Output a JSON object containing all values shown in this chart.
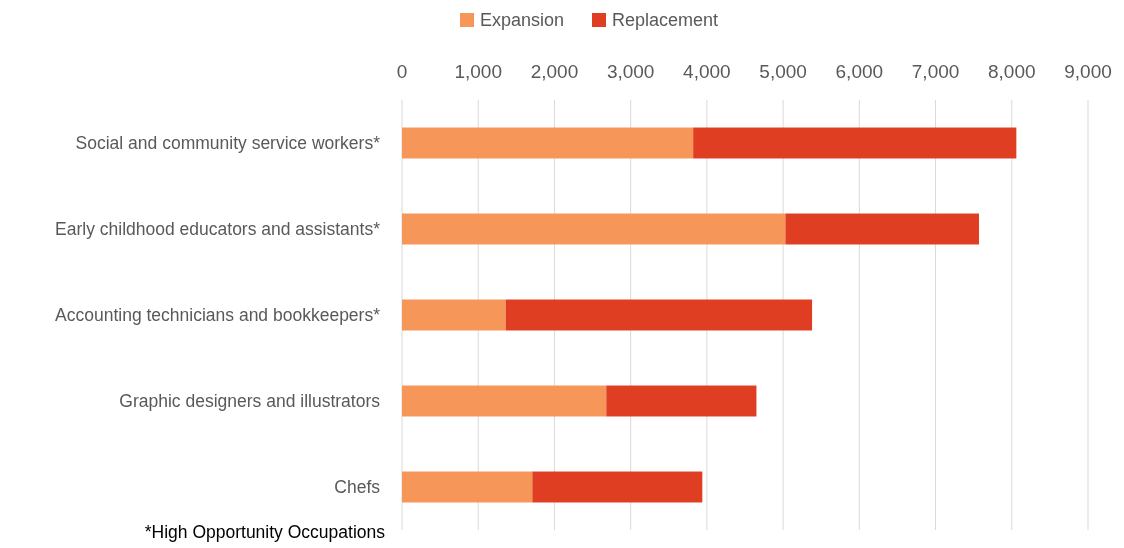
{
  "chart_data": {
    "type": "bar",
    "orientation": "horizontal",
    "stacked": true,
    "categories": [
      "Social and community service workers*",
      "Early childhood educators and assistants*",
      "Accounting technicians and bookkeepers*",
      "Graphic designers and illustrators",
      "Chefs"
    ],
    "series": [
      {
        "name": "Expansion",
        "color": "#f79659",
        "values": [
          3820,
          5030,
          1360,
          2680,
          1710
        ]
      },
      {
        "name": "Replacement",
        "color": "#e03e22",
        "values": [
          4240,
          2540,
          4020,
          1970,
          2230
        ]
      }
    ],
    "xlim": [
      0,
      9000
    ],
    "xticks": [
      0,
      {
        "value": 1000,
        "label": "1,000"
      },
      {
        "value": 2000,
        "label": "2,000"
      },
      {
        "value": 3000,
        "label": "3,000"
      },
      {
        "value": 4000,
        "label": "4,000"
      },
      {
        "value": 5000,
        "label": "5,000"
      },
      {
        "value": 6000,
        "label": "6,000"
      },
      {
        "value": 7000,
        "label": "7,000"
      },
      {
        "value": 8000,
        "label": "8,000"
      },
      {
        "value": 9000,
        "label": "9,000"
      }
    ],
    "grid": "x",
    "legend": "top",
    "annotations": [
      "*High Opportunity Occupations"
    ]
  }
}
